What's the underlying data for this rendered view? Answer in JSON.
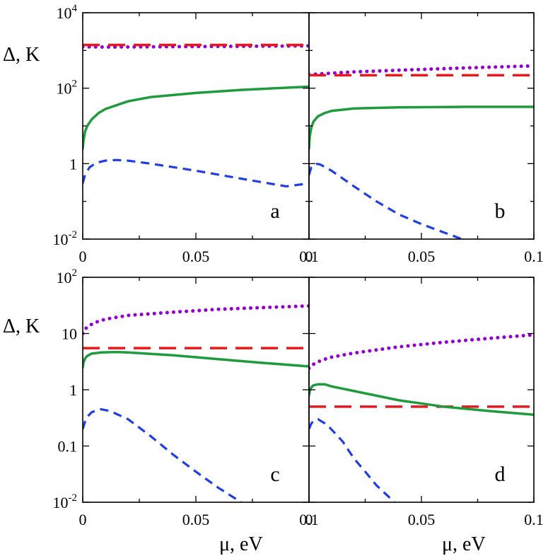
{
  "colors": {
    "dotted": "#9400d3",
    "long_dashed": "#e8191d",
    "solid": "#1e9b3c",
    "short_dashed": "#1f3fe3"
  },
  "labels": {
    "ylabel_top": "Δ, K",
    "ylabel_bottom": "Δ, K",
    "xlabel_left": "μ, eV",
    "xlabel_right": "μ, eV"
  },
  "chart_data": [
    {
      "type": "line",
      "panel": "a",
      "yscale": "log",
      "xlim": [
        0,
        0.1
      ],
      "ylim": [
        0.01,
        10000
      ],
      "xticks": [
        "0",
        "0.05",
        "0.1"
      ],
      "yticks": [
        {
          "value": 0.01,
          "base": "10",
          "exp": "-2"
        },
        {
          "value": 1,
          "base": "1",
          "exp": ""
        },
        {
          "value": 100,
          "base": "10",
          "exp": "2"
        },
        {
          "value": 10000,
          "base": "10",
          "exp": "4"
        }
      ],
      "series": [
        {
          "style": "dotted",
          "x": [
            0,
            0.01,
            0.02,
            0.04,
            0.06,
            0.08,
            0.1
          ],
          "y": [
            1250,
            1230,
            1240,
            1260,
            1280,
            1300,
            1320
          ]
        },
        {
          "style": "long_dashed",
          "x": [
            0,
            0.1
          ],
          "y": [
            1400,
            1400
          ]
        },
        {
          "style": "solid",
          "x": [
            0,
            0.0003,
            0.001,
            0.002,
            0.004,
            0.007,
            0.01,
            0.02,
            0.03,
            0.05,
            0.07,
            0.1
          ],
          "y": [
            2.5,
            4,
            7,
            10,
            15,
            22,
            28,
            45,
            58,
            75,
            90,
            110
          ]
        },
        {
          "style": "short_dashed",
          "x": [
            0,
            0.001,
            0.003,
            0.006,
            0.01,
            0.015,
            0.02,
            0.03,
            0.05,
            0.07,
            0.09,
            0.1
          ],
          "y": [
            0.3,
            0.5,
            0.8,
            1.05,
            1.2,
            1.25,
            1.2,
            1.0,
            0.65,
            0.4,
            0.25,
            0.3
          ]
        }
      ]
    },
    {
      "type": "line",
      "panel": "b",
      "yscale": "log",
      "xlim": [
        0,
        0.1
      ],
      "ylim": [
        0.01,
        10000
      ],
      "xticks": [
        "0",
        "0.05",
        "0.1"
      ],
      "yticks": [
        {
          "value": 0.01
        },
        {
          "value": 1
        },
        {
          "value": 100
        },
        {
          "value": 10000
        }
      ],
      "series": [
        {
          "style": "dotted",
          "x": [
            0,
            0.01,
            0.02,
            0.04,
            0.06,
            0.08,
            0.1
          ],
          "y": [
            230,
            250,
            270,
            300,
            330,
            360,
            390
          ]
        },
        {
          "style": "long_dashed",
          "x": [
            0,
            0.1
          ],
          "y": [
            220,
            220
          ]
        },
        {
          "style": "solid",
          "x": [
            0,
            0.0003,
            0.001,
            0.002,
            0.004,
            0.007,
            0.01,
            0.02,
            0.04,
            0.07,
            0.1
          ],
          "y": [
            2.5,
            5,
            9,
            13,
            18,
            22,
            25,
            29,
            31,
            32,
            32
          ]
        },
        {
          "style": "short_dashed",
          "x": [
            0,
            0.001,
            0.003,
            0.005,
            0.01,
            0.02,
            0.03,
            0.04,
            0.05,
            0.06,
            0.068
          ],
          "y": [
            0.5,
            0.8,
            1.0,
            0.95,
            0.65,
            0.25,
            0.1,
            0.045,
            0.025,
            0.015,
            0.01
          ]
        }
      ]
    },
    {
      "type": "line",
      "panel": "c",
      "yscale": "log",
      "xlim": [
        0,
        0.1
      ],
      "ylim": [
        0.01,
        100
      ],
      "xticks": [
        "0",
        "0.05",
        "0.1"
      ],
      "yticks": [
        {
          "value": 0.01,
          "base": "10",
          "exp": "-2"
        },
        {
          "value": 0.1,
          "base": "0.1",
          "exp": ""
        },
        {
          "value": 1,
          "base": "1",
          "exp": ""
        },
        {
          "value": 10,
          "base": "10",
          "exp": ""
        },
        {
          "value": 100,
          "base": "10",
          "exp": "2"
        }
      ],
      "series": [
        {
          "style": "dotted",
          "x": [
            0,
            0.001,
            0.003,
            0.006,
            0.01,
            0.02,
            0.04,
            0.06,
            0.08,
            0.1
          ],
          "y": [
            10,
            12,
            14,
            16,
            18,
            21,
            24,
            27,
            29,
            31
          ]
        },
        {
          "style": "long_dashed",
          "x": [
            0,
            0.1
          ],
          "y": [
            5.5,
            5.5
          ]
        },
        {
          "style": "solid",
          "x": [
            0,
            0.0003,
            0.001,
            0.002,
            0.004,
            0.008,
            0.015,
            0.02,
            0.04,
            0.06,
            0.08,
            0.1
          ],
          "y": [
            2.5,
            3,
            3.6,
            4,
            4.4,
            4.6,
            4.7,
            4.6,
            4.1,
            3.5,
            3.0,
            2.6
          ]
        },
        {
          "style": "short_dashed",
          "x": [
            0,
            0.001,
            0.002,
            0.004,
            0.008,
            0.012,
            0.02,
            0.03,
            0.04,
            0.05,
            0.06,
            0.07
          ],
          "y": [
            0.2,
            0.27,
            0.33,
            0.4,
            0.45,
            0.42,
            0.3,
            0.15,
            0.07,
            0.035,
            0.018,
            0.01
          ]
        }
      ]
    },
    {
      "type": "line",
      "panel": "d",
      "yscale": "log",
      "xlim": [
        0,
        0.1
      ],
      "ylim": [
        0.01,
        100
      ],
      "xticks": [
        "0",
        "0.05",
        "0.1"
      ],
      "yticks": [
        {
          "value": 0.01
        },
        {
          "value": 0.1
        },
        {
          "value": 1
        },
        {
          "value": 10
        },
        {
          "value": 100
        }
      ],
      "series": [
        {
          "style": "dotted",
          "x": [
            0,
            0.001,
            0.003,
            0.006,
            0.01,
            0.02,
            0.04,
            0.06,
            0.08,
            0.1
          ],
          "y": [
            2.4,
            2.7,
            3.0,
            3.4,
            3.8,
            4.5,
            5.8,
            7.0,
            8.2,
            9.5
          ]
        },
        {
          "style": "long_dashed",
          "x": [
            0,
            0.1
          ],
          "y": [
            0.5,
            0.5
          ]
        },
        {
          "style": "solid",
          "x": [
            0,
            0.0005,
            0.001,
            0.002,
            0.004,
            0.007,
            0.01,
            0.02,
            0.04,
            0.06,
            0.08,
            0.1
          ],
          "y": [
            0.8,
            1.0,
            1.1,
            1.2,
            1.25,
            1.25,
            1.15,
            0.95,
            0.65,
            0.5,
            0.42,
            0.36
          ]
        },
        {
          "style": "short_dashed",
          "x": [
            0,
            0.001,
            0.002,
            0.004,
            0.008,
            0.015,
            0.02,
            0.025,
            0.03,
            0.035,
            0.038
          ],
          "y": [
            0.2,
            0.25,
            0.28,
            0.3,
            0.24,
            0.12,
            0.06,
            0.035,
            0.02,
            0.013,
            0.01
          ]
        }
      ]
    }
  ]
}
